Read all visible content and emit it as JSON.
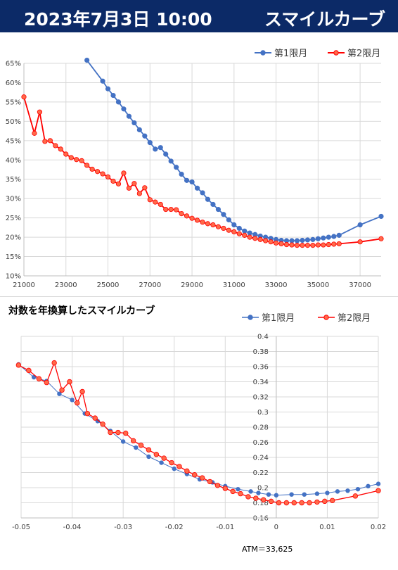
{
  "header": {
    "date": "2023年7月3日 10:00",
    "title": "スマイルカーブ"
  },
  "colors": {
    "header_bg": "#0c2a67",
    "series1": "#4472c4",
    "series2": "#ff0000",
    "series2_fill": "#ff6a4a",
    "grid": "#d9d9d9"
  },
  "chart_data": [
    {
      "type": "line",
      "title": "",
      "xlabel": "",
      "ylabel": "",
      "xlim": [
        21000,
        38000
      ],
      "ylim": [
        0.1,
        0.65
      ],
      "x_ticks": [
        21000,
        23000,
        25000,
        27000,
        29000,
        31000,
        33000,
        35000,
        37000
      ],
      "x_tick_labels": [
        "21000",
        "23000",
        "25000",
        "27000",
        "29000",
        "31000",
        "33000",
        "35000",
        "37000"
      ],
      "y_ticks": [
        0.1,
        0.15,
        0.2,
        0.25,
        0.3,
        0.35,
        0.4,
        0.45,
        0.5,
        0.55,
        0.6,
        0.65
      ],
      "y_tick_labels": [
        "10%",
        "15%",
        "20%",
        "25%",
        "30%",
        "35%",
        "40%",
        "45%",
        "50%",
        "55%",
        "60%",
        "65%"
      ],
      "legend": "top-right",
      "grid": true,
      "series": [
        {
          "name": "第1限月",
          "x": [
            24000,
            24750,
            25000,
            25250,
            25500,
            25750,
            26000,
            26250,
            26500,
            26750,
            27000,
            27250,
            27500,
            27750,
            28000,
            28250,
            28500,
            28750,
            29000,
            29250,
            29500,
            29750,
            30000,
            30250,
            30500,
            30750,
            31000,
            31250,
            31500,
            31750,
            32000,
            32250,
            32500,
            32750,
            33000,
            33250,
            33500,
            33750,
            34000,
            34250,
            34500,
            34750,
            35000,
            35250,
            35500,
            35750,
            36000,
            37000,
            38000
          ],
          "y": [
            0.658,
            0.604,
            0.584,
            0.567,
            0.55,
            0.532,
            0.513,
            0.496,
            0.478,
            0.462,
            0.445,
            0.428,
            0.432,
            0.415,
            0.397,
            0.381,
            0.363,
            0.347,
            0.343,
            0.327,
            0.315,
            0.298,
            0.285,
            0.272,
            0.259,
            0.245,
            0.232,
            0.223,
            0.216,
            0.211,
            0.207,
            0.203,
            0.2,
            0.197,
            0.194,
            0.192,
            0.191,
            0.191,
            0.191,
            0.192,
            0.193,
            0.194,
            0.196,
            0.198,
            0.2,
            0.202,
            0.205,
            0.232,
            0.254
          ]
        },
        {
          "name": "第2限月",
          "x": [
            21000,
            21500,
            21750,
            22000,
            22250,
            22500,
            22750,
            23000,
            23250,
            23500,
            23750,
            24000,
            24250,
            24500,
            24750,
            25000,
            25250,
            25500,
            25750,
            26000,
            26250,
            26500,
            26750,
            27000,
            27250,
            27500,
            27750,
            28000,
            28250,
            28500,
            28750,
            29000,
            29250,
            29500,
            29750,
            30000,
            30250,
            30500,
            30750,
            31000,
            31250,
            31500,
            31750,
            32000,
            32250,
            32500,
            32750,
            33000,
            33250,
            33500,
            33750,
            34000,
            34250,
            34500,
            34750,
            35000,
            35250,
            35500,
            35750,
            36000,
            37000,
            38000
          ],
          "y": [
            0.563,
            0.469,
            0.524,
            0.448,
            0.45,
            0.437,
            0.428,
            0.415,
            0.406,
            0.401,
            0.398,
            0.386,
            0.376,
            0.37,
            0.364,
            0.356,
            0.345,
            0.338,
            0.366,
            0.327,
            0.339,
            0.313,
            0.328,
            0.297,
            0.291,
            0.285,
            0.272,
            0.272,
            0.271,
            0.261,
            0.255,
            0.249,
            0.244,
            0.239,
            0.235,
            0.232,
            0.227,
            0.223,
            0.218,
            0.214,
            0.209,
            0.205,
            0.2,
            0.197,
            0.194,
            0.191,
            0.188,
            0.185,
            0.183,
            0.181,
            0.18,
            0.179,
            0.179,
            0.179,
            0.179,
            0.18,
            0.18,
            0.181,
            0.182,
            0.183,
            0.188,
            0.196
          ]
        }
      ]
    },
    {
      "type": "scatter",
      "title": "対数を年換算したスマイルカーブ",
      "xlabel": "",
      "ylabel": "",
      "xlim": [
        -0.05,
        0.02
      ],
      "ylim": [
        0.16,
        0.4
      ],
      "x_ticks": [
        -0.05,
        -0.04,
        -0.03,
        -0.02,
        -0.01,
        0,
        0.01,
        0.02
      ],
      "x_tick_labels": [
        "-0.05",
        "-0.04",
        "-0.03",
        "-0.02",
        "-0.01",
        "0",
        "0.01",
        "0.02"
      ],
      "y_ticks": [
        0.16,
        0.18,
        0.2,
        0.22,
        0.24,
        0.26,
        0.28,
        0.3,
        0.32,
        0.34,
        0.36,
        0.38,
        0.4
      ],
      "y_tick_labels": [
        "0.16",
        "0.18",
        "0.2",
        "0.22",
        "0.24",
        "0.26",
        "0.28",
        "0.3",
        "0.32",
        "0.34",
        "0.36",
        "0.38",
        "0.4"
      ],
      "legend": "top-right",
      "grid": true,
      "annotation": "ATM＝33,625",
      "series": [
        {
          "name": "第1限月",
          "x": [
            -0.0505,
            -0.0475,
            -0.045,
            -0.0425,
            -0.04,
            -0.0375,
            -0.035,
            -0.0325,
            -0.03,
            -0.0275,
            -0.025,
            -0.0225,
            -0.02,
            -0.0175,
            -0.015,
            -0.0125,
            -0.01,
            -0.0075,
            -0.005,
            -0.0035,
            -0.0015,
            0.0,
            0.003,
            0.0055,
            0.008,
            0.01,
            0.012,
            0.014,
            0.016,
            0.018,
            0.02
          ],
          "y": [
            0.363,
            0.346,
            0.341,
            0.324,
            0.316,
            0.298,
            0.288,
            0.275,
            0.261,
            0.253,
            0.241,
            0.233,
            0.225,
            0.218,
            0.211,
            0.207,
            0.202,
            0.198,
            0.195,
            0.193,
            0.191,
            0.19,
            0.191,
            0.191,
            0.192,
            0.193,
            0.195,
            0.196,
            0.198,
            0.202,
            0.205
          ]
        },
        {
          "name": "第2限月",
          "x": [
            -0.0505,
            -0.0485,
            -0.0465,
            -0.045,
            -0.0435,
            -0.042,
            -0.0405,
            -0.039,
            -0.038,
            -0.037,
            -0.0355,
            -0.034,
            -0.0325,
            -0.031,
            -0.0295,
            -0.028,
            -0.0265,
            -0.025,
            -0.0235,
            -0.022,
            -0.0205,
            -0.019,
            -0.0175,
            -0.016,
            -0.0145,
            -0.013,
            -0.0115,
            -0.01,
            -0.0085,
            -0.007,
            -0.0055,
            -0.004,
            -0.0025,
            -0.001,
            0.0005,
            0.002,
            0.0035,
            0.005,
            0.0065,
            0.008,
            0.0095,
            0.011,
            0.0155,
            0.02
          ],
          "y": [
            0.362,
            0.355,
            0.344,
            0.339,
            0.365,
            0.329,
            0.34,
            0.312,
            0.327,
            0.298,
            0.292,
            0.284,
            0.273,
            0.273,
            0.272,
            0.262,
            0.256,
            0.25,
            0.244,
            0.239,
            0.233,
            0.228,
            0.222,
            0.217,
            0.213,
            0.208,
            0.203,
            0.199,
            0.195,
            0.192,
            0.188,
            0.186,
            0.184,
            0.182,
            0.18,
            0.18,
            0.18,
            0.18,
            0.18,
            0.181,
            0.182,
            0.183,
            0.189,
            0.196
          ]
        }
      ]
    }
  ]
}
